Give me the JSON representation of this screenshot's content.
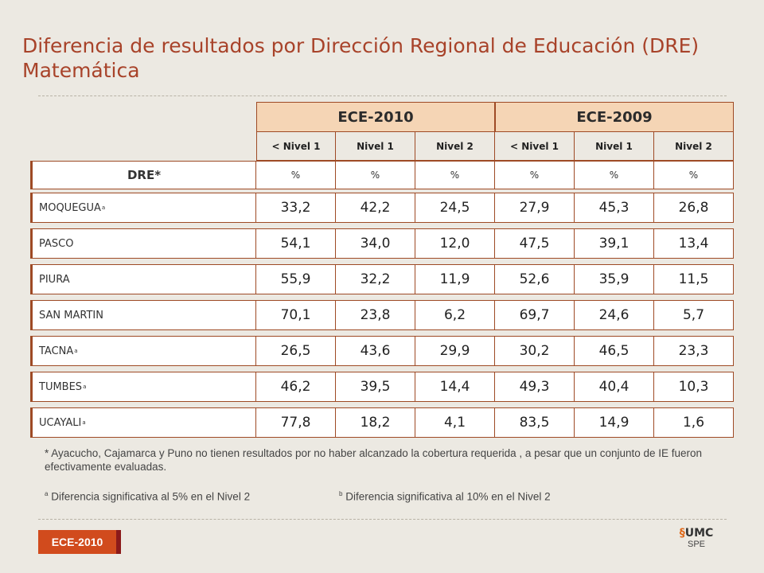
{
  "title": "Diferencia de resultados por Dirección Regional de Educación (DRE) Matemática",
  "table": {
    "groups": [
      "ECE-2010",
      "ECE-2009"
    ],
    "subheaders": [
      "< Nivel 1",
      "Nivel 1",
      "Nivel 2",
      "< Nivel 1",
      "Nivel 1",
      "Nivel 2"
    ],
    "dre_header": "DRE*",
    "unit": "%",
    "rows": [
      {
        "name": "MOQUEGUA",
        "sup": "a",
        "values": [
          "33,2",
          "42,2",
          "24,5",
          "27,9",
          "45,3",
          "26,8"
        ]
      },
      {
        "name": "PASCO",
        "sup": "",
        "values": [
          "54,1",
          "34,0",
          "12,0",
          "47,5",
          "39,1",
          "13,4"
        ]
      },
      {
        "name": "PIURA",
        "sup": "",
        "values": [
          "55,9",
          "32,2",
          "11,9",
          "52,6",
          "35,9",
          "11,5"
        ]
      },
      {
        "name": "SAN MARTIN",
        "sup": "",
        "values": [
          "70,1",
          "23,8",
          "6,2",
          "69,7",
          "24,6",
          "5,7"
        ]
      },
      {
        "name": "TACNA",
        "sup": "a",
        "values": [
          "26,5",
          "43,6",
          "29,9",
          "30,2",
          "46,5",
          "23,3"
        ]
      },
      {
        "name": "TUMBES",
        "sup": "a",
        "values": [
          "46,2",
          "39,5",
          "14,4",
          "49,3",
          "40,4",
          "10,3"
        ]
      },
      {
        "name": "UCAYALI",
        "sup": "a",
        "values": [
          "77,8",
          "18,2",
          "4,1",
          "83,5",
          "14,9",
          "1,6"
        ]
      }
    ]
  },
  "notes": {
    "main": "* Ayacucho, Cajamarca y Puno no tienen resultados por no haber alcanzado la cobertura requerida , a pesar que un conjunto de IE fueron efectivamente evaluadas.",
    "a_sup": "a",
    "a_text": " Diferencia significativa al 5% en el Nivel 2",
    "b_sup": "b",
    "b_text": " Diferencia significativa al 10% en el Nivel 2"
  },
  "footer": {
    "badge": "ECE-2010",
    "logo_text": "UMC",
    "logo_sub": "SPE"
  }
}
